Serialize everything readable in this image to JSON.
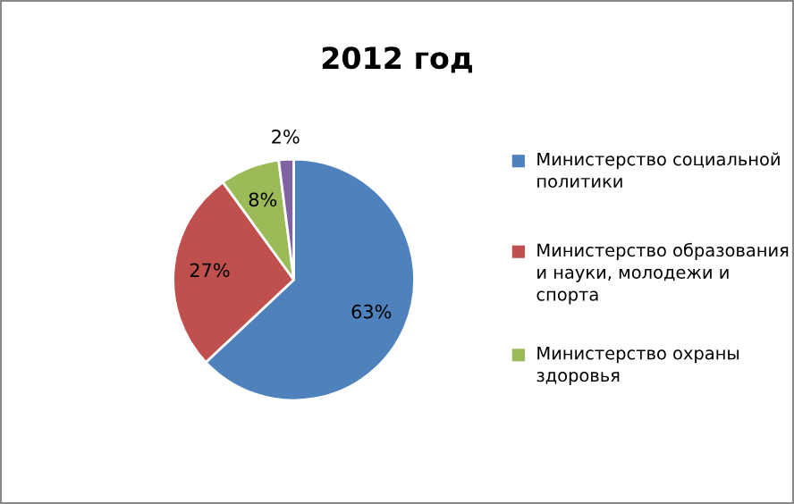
{
  "chart_data": {
    "type": "pie",
    "title": "2012 год",
    "categories": [
      "Министерство социальной политики",
      "Министерство образования и науки, молодежи и спорта",
      "Министерство охраны здоровья",
      null
    ],
    "values": [
      63,
      27,
      8,
      2
    ],
    "colors": [
      "#4f81bd",
      "#c0504d",
      "#9bbb59",
      "#8064a2"
    ],
    "value_labels": [
      "63%",
      "27%",
      "8%",
      "2%"
    ],
    "legend": "right"
  }
}
